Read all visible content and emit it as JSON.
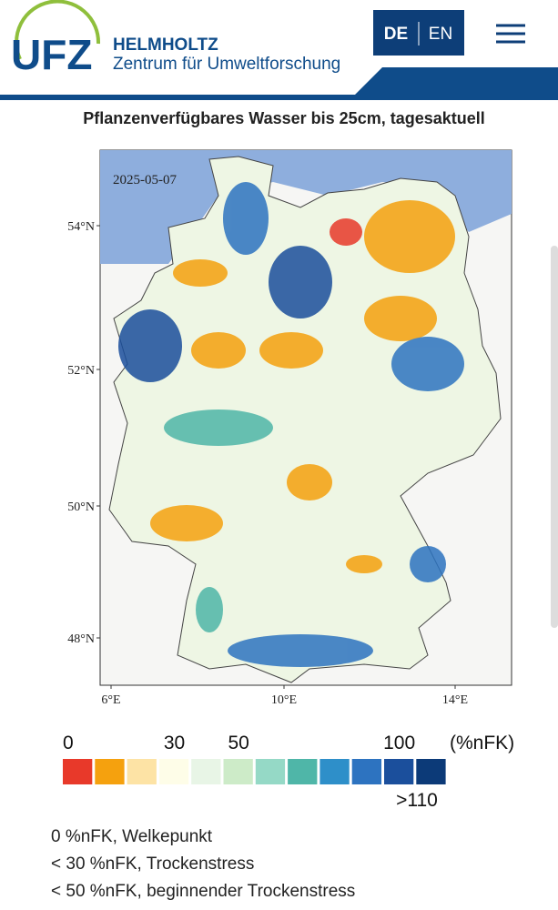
{
  "header": {
    "logo": "UFZ",
    "org": "HELMHOLTZ",
    "subtitle": "Zentrum für Umweltforschung",
    "languages": [
      "DE",
      "EN"
    ]
  },
  "map": {
    "title": "Pflanzenverfügbares Wasser bis 25cm, tagesaktuell",
    "date": "2025-05-07",
    "lat_labels": [
      "54°N",
      "52°N",
      "50°N",
      "48°N"
    ],
    "lon_labels": [
      "6°E",
      "10°E",
      "14°E"
    ]
  },
  "legend": {
    "labels": [
      "0",
      "30",
      "50",
      "100"
    ],
    "unit": "(%nFK)",
    "top_label": ">110",
    "colors": [
      "#e8392a",
      "#f5a10e",
      "#fde3a5",
      "#fefde8",
      "#e8f5e6",
      "#cdebc8",
      "#95d9c6",
      "#4fb6a8",
      "#2e8fc9",
      "#2d73c0",
      "#1b4f9c",
      "#0c3a78"
    ]
  },
  "notes": [
    "0 %nFK, Welkepunkt",
    "< 30 %nFK, Trockenstress",
    "< 50 %nFK, beginnender Trockenstress"
  ]
}
